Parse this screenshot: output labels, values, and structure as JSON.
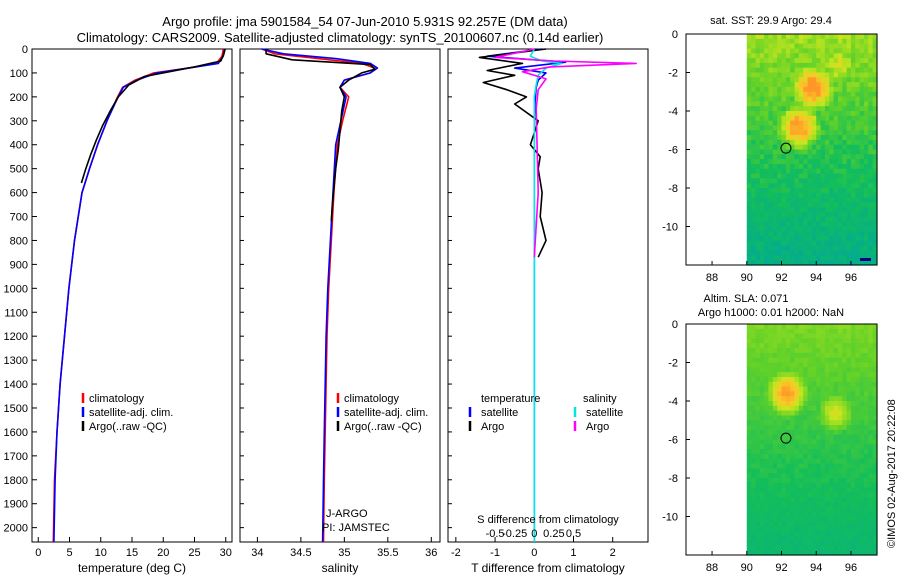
{
  "title": {
    "line1": "Argo profile: jma 5901584_54 07-Jun-2010 5.931S 92.257E (DM data)",
    "line2": "Climatology: CARS2009. Satellite-adjusted climatology: synTS_20100607.nc (0.14d earlier)"
  },
  "side_text": "©IMOS 02-Aug-2017 20:22:08",
  "chart_data": [
    {
      "id": "temperature",
      "type": "line",
      "xlabel": "temperature (deg C)",
      "ylabel": "",
      "xlim": [
        -1,
        31
      ],
      "ylim": [
        2060,
        0
      ],
      "xticks": [
        0,
        5,
        10,
        15,
        20,
        25,
        30
      ],
      "xtick_labels": [
        "0",
        "5",
        "10",
        "15",
        "20",
        "25",
        "30"
      ],
      "yticks": [
        0,
        100,
        200,
        300,
        400,
        500,
        600,
        700,
        800,
        900,
        1000,
        1100,
        1200,
        1300,
        1400,
        1500,
        1600,
        1700,
        1800,
        1900,
        2000
      ],
      "ytick_labels": [
        "0",
        "100",
        "200",
        "300",
        "400",
        "500",
        "600",
        "700",
        "800",
        "900",
        "1000",
        "1100",
        "1200",
        "1300",
        "1400",
        "1500",
        "1600",
        "1700",
        "1800",
        "1900",
        "2000"
      ],
      "legend": [
        {
          "label": "climatology",
          "color": "#ff0000"
        },
        {
          "label": "satellite-adj. clim.",
          "color": "#0000ff"
        },
        {
          "label": "Argo(..raw -QC)",
          "color": "#000000"
        }
      ],
      "series": [
        {
          "name": "climatology",
          "color": "#ff0000",
          "x": [
            29.6,
            29.4,
            28.5,
            24,
            18.5,
            15.5,
            13.5,
            12.5,
            11,
            9.5,
            8.2,
            7,
            5.8,
            4.9,
            4.2,
            3.5,
            3.0,
            2.6,
            2.4
          ],
          "y": [
            0,
            30,
            60,
            80,
            100,
            130,
            160,
            210,
            300,
            400,
            500,
            600,
            800,
            1000,
            1200,
            1400,
            1600,
            1800,
            2060
          ]
        },
        {
          "name": "satellite-adj. clim.",
          "color": "#0000ff",
          "x": [
            29.8,
            29.6,
            28.8,
            24,
            19,
            15.8,
            13.6,
            12.6,
            11,
            9.5,
            8.2,
            7,
            5.8,
            4.9,
            4.2,
            3.5,
            3.0,
            2.7,
            2.5
          ],
          "y": [
            0,
            30,
            60,
            80,
            100,
            130,
            160,
            210,
            300,
            400,
            500,
            600,
            800,
            1000,
            1200,
            1400,
            1600,
            1800,
            2060
          ]
        },
        {
          "name": "Argo(..raw -QC)",
          "color": "#000000",
          "x": [
            29.9,
            29.7,
            29.2,
            25,
            21,
            17,
            14.5,
            12.8,
            11.5,
            10.3,
            9.3,
            8.4,
            7.6,
            6.9
          ],
          "y": [
            0,
            20,
            50,
            75,
            95,
            115,
            150,
            200,
            260,
            320,
            380,
            440,
            500,
            560
          ]
        }
      ]
    },
    {
      "id": "salinity",
      "type": "line",
      "xlabel": "salinity",
      "ylabel": "",
      "xlim": [
        33.8,
        36.1
      ],
      "ylim": [
        2060,
        0
      ],
      "xticks": [
        34,
        34.5,
        35,
        35.5,
        36
      ],
      "xtick_labels": [
        "34",
        "34.5",
        "35",
        "35.5",
        "36"
      ],
      "legend": [
        {
          "label": "climatology",
          "color": "#ff0000"
        },
        {
          "label": "satellite-adj. clim.",
          "color": "#0000ff"
        },
        {
          "label": "Argo(..raw -QC)",
          "color": "#000000"
        }
      ],
      "annotations": [
        "J-ARGO",
        "PI: JAMSTEC"
      ],
      "series": [
        {
          "name": "climatology",
          "color": "#ff0000",
          "x": [
            34.05,
            34.2,
            34.7,
            35.2,
            35.35,
            35.3,
            35.0,
            34.95,
            35.05,
            34.98,
            34.92,
            34.88,
            34.85,
            34.82,
            34.8,
            34.79,
            34.78,
            34.77,
            34.76
          ],
          "y": [
            0,
            20,
            40,
            60,
            80,
            100,
            130,
            160,
            200,
            300,
            400,
            600,
            800,
            1000,
            1200,
            1400,
            1600,
            1800,
            2060
          ]
        },
        {
          "name": "satellite-adj. clim.",
          "color": "#0000ff",
          "x": [
            34.05,
            34.3,
            34.9,
            35.3,
            35.38,
            35.3,
            35.0,
            34.95,
            35.02,
            34.96,
            34.9,
            34.87,
            34.84,
            34.81,
            34.79,
            34.78,
            34.77,
            34.76,
            34.75
          ],
          "y": [
            0,
            20,
            40,
            60,
            80,
            100,
            130,
            160,
            200,
            300,
            400,
            600,
            800,
            1000,
            1200,
            1400,
            1600,
            1800,
            2060
          ]
        },
        {
          "name": "Argo(..raw -QC)",
          "color": "#000000",
          "x": [
            34.1,
            34.1,
            34.4,
            35.3,
            35.35,
            35.2,
            35.05,
            34.95,
            35.0,
            34.97,
            34.95,
            34.93,
            34.9,
            34.88,
            34.86,
            34.85
          ],
          "y": [
            0,
            20,
            45,
            65,
            85,
            100,
            130,
            160,
            200,
            260,
            340,
            420,
            500,
            580,
            660,
            720
          ]
        }
      ]
    },
    {
      "id": "difference",
      "type": "line",
      "xlabel": "T difference from climatology",
      "xlabel_top": "S difference from climatology",
      "xlim": [
        -2.2,
        2.9
      ],
      "ylim": [
        2060,
        0
      ],
      "xticks": [
        -2,
        -1,
        0,
        1,
        2
      ],
      "xtick_labels": [
        "-2",
        "-1",
        "0",
        "1",
        "2"
      ],
      "s_xticks": [
        -0.5,
        -0.25,
        0,
        0.25,
        0.5
      ],
      "s_xtick_labels": [
        "-0.5",
        "-0.25",
        "0",
        "0.25",
        "0.5"
      ],
      "legend": [
        {
          "label": "temperature",
          "color": "#000000"
        },
        {
          "label": "satellite",
          "color": "#0000ff"
        },
        {
          "label": "Argo",
          "color": "#000000"
        },
        {
          "label": "salinity",
          "color": "#000000"
        },
        {
          "label": "satellite",
          "color": "#00e5e5"
        },
        {
          "label": "Argo",
          "color": "#ff00ff"
        }
      ],
      "series": [
        {
          "name": "T satellite",
          "color": "#0000ff",
          "x": [
            0.2,
            -1.2,
            0.8,
            -0.5,
            0.3,
            0.1,
            0.05,
            0.02,
            0,
            0,
            0,
            0
          ],
          "y": [
            0,
            30,
            55,
            80,
            100,
            130,
            160,
            220,
            300,
            500,
            1000,
            2060
          ]
        },
        {
          "name": "T Argo",
          "color": "#000000",
          "x": [
            0.3,
            -1.4,
            -0.3,
            -1.2,
            -0.5,
            -1.3,
            -0.7,
            -0.2,
            -0.5,
            0.1,
            -0.1,
            0.15,
            0.1,
            0.2,
            0.15,
            0.3,
            0.1
          ],
          "y": [
            0,
            35,
            60,
            90,
            110,
            140,
            170,
            200,
            230,
            300,
            400,
            450,
            500,
            600,
            700,
            800,
            870
          ]
        },
        {
          "name": "S satellite",
          "color": "#00e5e5",
          "x": [
            0,
            -0.1,
            0.2,
            0.7,
            0.3,
            0.1,
            0.05,
            0,
            0,
            0,
            0
          ],
          "y": [
            0,
            30,
            50,
            60,
            80,
            110,
            150,
            200,
            400,
            1000,
            2060
          ]
        },
        {
          "name": "S Argo",
          "color": "#ff00ff",
          "x": [
            0,
            -1.0,
            0.5,
            2.6,
            0.4,
            -0.3,
            0.3,
            0.1,
            0.05,
            0.1,
            0
          ],
          "y": [
            0,
            35,
            50,
            60,
            75,
            95,
            125,
            170,
            250,
            600,
            870
          ]
        }
      ]
    },
    {
      "id": "sst_map",
      "type": "heatmap",
      "title": "sat. SST: 29.9 Argo: 29.4",
      "xlim": [
        86.5,
        97.5
      ],
      "ylim": [
        -12,
        0
      ],
      "xticks": [
        88,
        90,
        92,
        94,
        96
      ],
      "xtick_labels": [
        "88",
        "90",
        "92",
        "94",
        "96"
      ],
      "yticks": [
        0,
        -2,
        -4,
        -6,
        -8,
        -10
      ],
      "ytick_labels": [
        "0",
        "-2",
        "-4",
        "-6",
        "-8",
        "-10"
      ],
      "data_lon_range": [
        90,
        97.5
      ],
      "marker": {
        "lon": 92.257,
        "lat": -5.931
      },
      "hotspots": [
        {
          "lon": 93.7,
          "lat": -2.7,
          "value": 0.9
        },
        {
          "lon": 92.9,
          "lat": -4.7,
          "value": 0.9
        },
        {
          "lon": 95.2,
          "lat": -1.5,
          "value": 0.55
        }
      ]
    },
    {
      "id": "sla_map",
      "type": "heatmap",
      "title": "Altim. SLA: 0.071",
      "subtitle": "Argo h1000: 0.01 h2000: NaN",
      "xlim": [
        86.5,
        97.5
      ],
      "ylim": [
        -12,
        0
      ],
      "xticks": [
        88,
        90,
        92,
        94,
        96
      ],
      "xtick_labels": [
        "88",
        "90",
        "92",
        "94",
        "96"
      ],
      "yticks": [
        0,
        -2,
        -4,
        -6,
        -8,
        -10
      ],
      "ytick_labels": [
        "0",
        "-2",
        "-4",
        "-6",
        "-8",
        "-10"
      ],
      "data_lon_range": [
        90,
        97.5
      ],
      "marker": {
        "lon": 92.257,
        "lat": -5.931
      },
      "hotspots": [
        {
          "lon": 92.2,
          "lat": -3.5,
          "value": 0.85
        },
        {
          "lon": 95.0,
          "lat": -4.5,
          "value": 0.6
        }
      ]
    }
  ]
}
